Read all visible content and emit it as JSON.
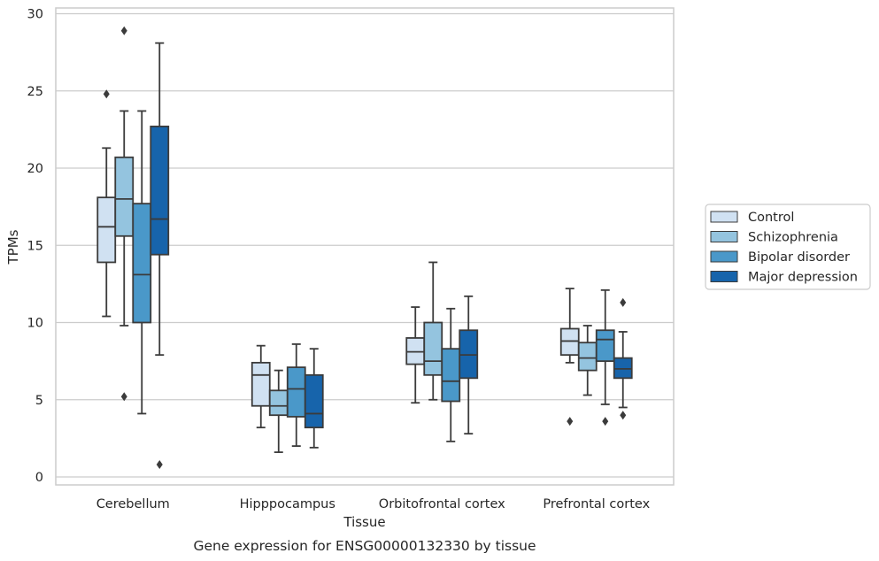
{
  "caption": "Gene expression for ENSG00000132330 by tissue",
  "chart_data": {
    "type": "boxplot",
    "xlabel": "Tissue",
    "ylabel": "TPMs",
    "ylim": [
      -0.5,
      30.3
    ],
    "yticks": [
      "0",
      "5",
      "10",
      "15",
      "20",
      "25",
      "30"
    ],
    "grid": "horizontal",
    "legend_position": "right",
    "categories": [
      "Cerebellum",
      "Hipppocampus",
      "Orbitofrontal cortex",
      "Prefrontal cortex"
    ],
    "series": [
      {
        "name": "Control",
        "color": "#d0e1f2",
        "boxes": [
          {
            "whislo": 10.4,
            "q1": 13.9,
            "med": 16.2,
            "q3": 18.1,
            "whishi": 21.3,
            "fliers": [
              24.8
            ]
          },
          {
            "whislo": 3.2,
            "q1": 4.6,
            "med": 6.6,
            "q3": 7.4,
            "whishi": 8.5,
            "fliers": []
          },
          {
            "whislo": 4.8,
            "q1": 7.3,
            "med": 8.1,
            "q3": 9.0,
            "whishi": 11.0,
            "fliers": []
          },
          {
            "whislo": 7.4,
            "q1": 7.9,
            "med": 8.8,
            "q3": 9.6,
            "whishi": 12.2,
            "fliers": [
              3.6
            ]
          }
        ]
      },
      {
        "name": "Schizophrenia",
        "color": "#94c4df",
        "boxes": [
          {
            "whislo": 9.8,
            "q1": 15.6,
            "med": 18.0,
            "q3": 20.7,
            "whishi": 23.7,
            "fliers": [
              28.9,
              5.2
            ]
          },
          {
            "whislo": 1.6,
            "q1": 4.0,
            "med": 4.6,
            "q3": 5.6,
            "whishi": 6.9,
            "fliers": []
          },
          {
            "whislo": 5.0,
            "q1": 6.6,
            "med": 7.5,
            "q3": 10.0,
            "whishi": 13.9,
            "fliers": []
          },
          {
            "whislo": 5.3,
            "q1": 6.9,
            "med": 7.7,
            "q3": 8.7,
            "whishi": 9.8,
            "fliers": []
          }
        ]
      },
      {
        "name": "Bipolar disorder",
        "color": "#4a98c9",
        "boxes": [
          {
            "whislo": 4.1,
            "q1": 10.0,
            "med": 13.1,
            "q3": 17.7,
            "whishi": 23.7,
            "fliers": []
          },
          {
            "whislo": 2.0,
            "q1": 3.9,
            "med": 5.7,
            "q3": 7.1,
            "whishi": 8.6,
            "fliers": []
          },
          {
            "whislo": 2.3,
            "q1": 4.9,
            "med": 6.2,
            "q3": 8.3,
            "whishi": 10.9,
            "fliers": []
          },
          {
            "whislo": 4.7,
            "q1": 7.5,
            "med": 8.9,
            "q3": 9.5,
            "whishi": 12.1,
            "fliers": [
              3.6
            ]
          }
        ]
      },
      {
        "name": "Major depression",
        "color": "#1764ab",
        "boxes": [
          {
            "whislo": 7.9,
            "q1": 14.4,
            "med": 16.7,
            "q3": 22.7,
            "whishi": 28.1,
            "fliers": [
              0.8
            ]
          },
          {
            "whislo": 1.9,
            "q1": 3.2,
            "med": 4.1,
            "q3": 6.6,
            "whishi": 8.3,
            "fliers": []
          },
          {
            "whislo": 2.8,
            "q1": 6.4,
            "med": 7.9,
            "q3": 9.5,
            "whishi": 11.7,
            "fliers": []
          },
          {
            "whislo": 4.5,
            "q1": 6.4,
            "med": 7.0,
            "q3": 7.7,
            "whishi": 9.4,
            "fliers": [
              11.3,
              4.0
            ]
          }
        ]
      }
    ]
  }
}
